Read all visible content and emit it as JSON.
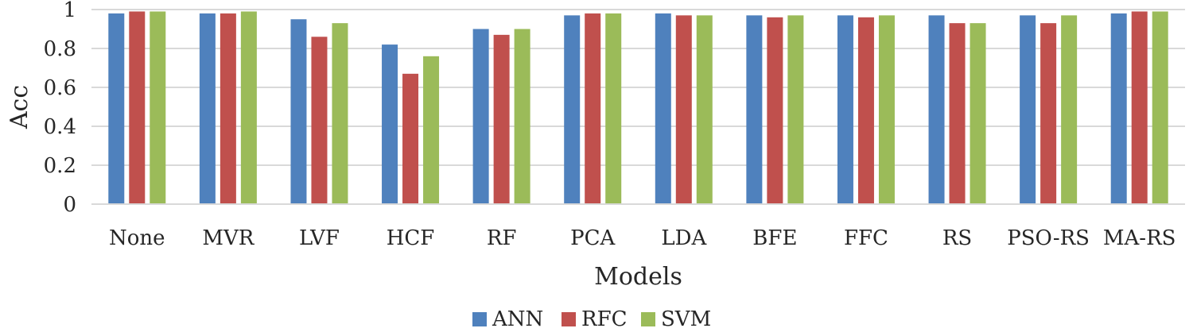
{
  "chart_data": {
    "type": "bar",
    "title": "",
    "xlabel": "Models",
    "ylabel": "Acc",
    "ylim": [
      0,
      1
    ],
    "yticks": [
      "0",
      "0.2",
      "0.4",
      "0.6",
      "0.8",
      "1"
    ],
    "grid": true,
    "legend_position": "bottom",
    "categories": [
      "None",
      "MVR",
      "LVF",
      "HCF",
      "RF",
      "PCA",
      "LDA",
      "BFE",
      "FFC",
      "RS",
      "PSO-RS",
      "MA-RS"
    ],
    "series": [
      {
        "name": "ANN",
        "color": "#4F81BD",
        "values": [
          0.98,
          0.98,
          0.95,
          0.82,
          0.9,
          0.97,
          0.98,
          0.97,
          0.97,
          0.97,
          0.97,
          0.98
        ]
      },
      {
        "name": "RFC",
        "color": "#C0504D",
        "values": [
          0.99,
          0.98,
          0.86,
          0.67,
          0.87,
          0.98,
          0.97,
          0.96,
          0.96,
          0.93,
          0.93,
          0.99
        ]
      },
      {
        "name": "SVM",
        "color": "#9BBB59",
        "values": [
          0.99,
          0.99,
          0.93,
          0.76,
          0.9,
          0.98,
          0.97,
          0.97,
          0.97,
          0.93,
          0.97,
          0.99
        ]
      }
    ]
  }
}
